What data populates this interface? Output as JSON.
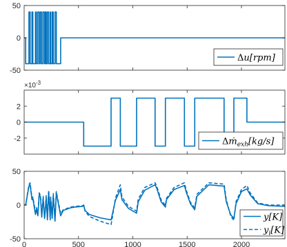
{
  "colors": {
    "series": "#0072BD",
    "axis": "#262626",
    "legend_border": "#262626"
  },
  "chart_data": [
    {
      "type": "line",
      "xlim": [
        0,
        2400
      ],
      "ylim": [
        -50,
        50
      ],
      "xticks": [
        500,
        1000,
        1500,
        2000
      ],
      "show_xtick_labels": false,
      "yticks": [
        -50,
        0,
        50
      ],
      "ytick_labels": [
        "-50",
        "0",
        "50"
      ],
      "grid": false,
      "legend_position": "bottom-right",
      "legend": [
        {
          "label": "Δu[rpm]",
          "style": "solid"
        }
      ],
      "series": [
        {
          "name": "Δu[rpm]",
          "style": "solid",
          "x": [
            0,
            14,
            14,
            44,
            44,
            55,
            55,
            72,
            72,
            80,
            80,
            104,
            104,
            113,
            113,
            126,
            126,
            139,
            139,
            150,
            150,
            162,
            162,
            175,
            175,
            188,
            188,
            196,
            196,
            203,
            203,
            214,
            214,
            226,
            226,
            240,
            240,
            244,
            244,
            258,
            258,
            268,
            268,
            284,
            284,
            296,
            296,
            336,
            336,
            2400
          ],
          "y": [
            0,
            0,
            -40,
            -40,
            40,
            40,
            -40,
            -40,
            40,
            40,
            -40,
            -40,
            40,
            40,
            -40,
            -40,
            40,
            40,
            -40,
            -40,
            40,
            40,
            -40,
            -40,
            40,
            40,
            -40,
            -40,
            40,
            40,
            -40,
            -40,
            40,
            40,
            -40,
            -40,
            40,
            40,
            -40,
            -40,
            40,
            40,
            -40,
            -40,
            40,
            40,
            -40,
            -40,
            0,
            0
          ]
        }
      ]
    },
    {
      "type": "line",
      "xlim": [
        0,
        2400
      ],
      "ylim": [
        -0.004,
        0.004
      ],
      "exponent_label": "×10",
      "exponent_power": "-3",
      "xticks": [
        500,
        1000,
        1500,
        2000
      ],
      "show_xtick_labels": false,
      "yticks": [
        -0.002,
        0,
        0.002
      ],
      "ytick_labels": [
        "-2",
        "0",
        "2"
      ],
      "grid": false,
      "legend_position": "bottom-right",
      "legend": [
        {
          "label": "Δṁexh[kg/s]",
          "style": "solid"
        }
      ],
      "series": [
        {
          "name": "Δṁexh[kg/s]",
          "style": "solid",
          "x": [
            0,
            548,
            548,
            800,
            800,
            885,
            885,
            1035,
            1035,
            1205,
            1205,
            1300,
            1300,
            1475,
            1475,
            1570,
            1570,
            1840,
            1840,
            1930,
            1930,
            2050,
            2050,
            2400
          ],
          "y": [
            0,
            0,
            -0.003,
            -0.003,
            0.003,
            0.003,
            -0.003,
            -0.003,
            0.003,
            0.003,
            -0.003,
            -0.003,
            0.003,
            0.003,
            -0.003,
            -0.003,
            0.003,
            0.003,
            -0.003,
            -0.003,
            0.003,
            0.003,
            0,
            0
          ]
        }
      ]
    },
    {
      "type": "line",
      "xlim": [
        0,
        2400
      ],
      "ylim": [
        -50,
        50
      ],
      "xticks": [
        0,
        500,
        1000,
        1500,
        2000
      ],
      "xtick_labels": [
        "0",
        "500",
        "1000",
        "1500",
        "2000"
      ],
      "yticks": [
        -50,
        0,
        50
      ],
      "ytick_labels": [
        "-50",
        "0",
        "50"
      ],
      "grid": false,
      "legend_position": "bottom-right",
      "legend": [
        {
          "label": "y[K]",
          "style": "solid"
        },
        {
          "label": "yi[K]",
          "style": "dashed"
        }
      ],
      "series": [
        {
          "name": "y[K]",
          "style": "solid",
          "x": [
            0,
            14,
            44,
            55,
            72,
            80,
            104,
            113,
            126,
            139,
            150,
            162,
            175,
            188,
            196,
            203,
            214,
            226,
            240,
            244,
            258,
            268,
            284,
            296,
            336,
            360,
            430,
            470,
            540,
            548,
            560,
            600,
            700,
            800,
            810,
            840,
            885,
            900,
            960,
            1035,
            1050,
            1110,
            1205,
            1220,
            1260,
            1300,
            1310,
            1380,
            1475,
            1490,
            1530,
            1570,
            1590,
            1700,
            1840,
            1860,
            1900,
            1930,
            1950,
            2000,
            2050,
            2080,
            2150,
            2250,
            2400
          ],
          "y": [
            0,
            0,
            28,
            30,
            8,
            10,
            -14,
            -6,
            -16,
            16,
            12,
            -18,
            10,
            -20,
            -6,
            12,
            -22,
            20,
            -22,
            10,
            -20,
            14,
            -24,
            18,
            -16,
            -8,
            -4,
            -3,
            -2,
            0,
            -8,
            -14,
            -19,
            -22,
            -15,
            7,
            23,
            8,
            -5,
            -12,
            5,
            22,
            30,
            25,
            5,
            -3,
            8,
            23,
            29,
            20,
            2,
            -7,
            13,
            30,
            28,
            5,
            -14,
            -20,
            2,
            20,
            24,
            15,
            2,
            -1,
            -2
          ]
        },
        {
          "name": "yi[K]",
          "style": "dashed",
          "x": [
            0,
            14,
            44,
            55,
            72,
            80,
            104,
            113,
            126,
            139,
            150,
            162,
            175,
            188,
            196,
            203,
            214,
            226,
            240,
            244,
            258,
            268,
            284,
            296,
            336,
            360,
            430,
            470,
            540,
            548,
            560,
            600,
            700,
            800,
            810,
            840,
            885,
            900,
            960,
            1035,
            1050,
            1110,
            1205,
            1220,
            1260,
            1300,
            1310,
            1380,
            1475,
            1490,
            1530,
            1570,
            1590,
            1700,
            1840,
            1860,
            1900,
            1930,
            1950,
            2000,
            2050,
            2080,
            2150,
            2250,
            2400
          ],
          "y": [
            0,
            0,
            30,
            33,
            10,
            12,
            -10,
            -4,
            -14,
            18,
            14,
            -16,
            13,
            -17,
            -4,
            14,
            -20,
            22,
            -18,
            12,
            -17,
            17,
            -20,
            20,
            -13,
            -7,
            -3,
            -2,
            -1,
            0,
            -9,
            -17,
            -24,
            -29,
            -20,
            10,
            30,
            12,
            -2,
            -9,
            9,
            26,
            33,
            28,
            8,
            -1,
            10,
            26,
            33,
            23,
            4,
            -4,
            16,
            33,
            31,
            8,
            -16,
            -23,
            5,
            23,
            29,
            18,
            3,
            0,
            0
          ]
        }
      ]
    }
  ]
}
